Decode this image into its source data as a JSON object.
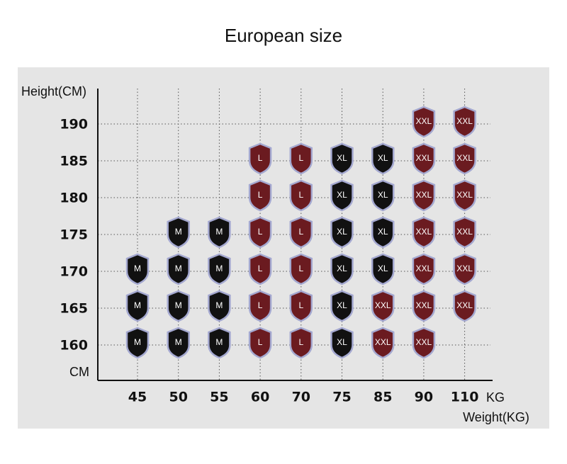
{
  "title": "European size",
  "y_axis_label": "Height(CM)",
  "y_unit": "CM",
  "x_axis_label": "Weight(KG)",
  "x_unit": "KG",
  "heights": [
    190,
    185,
    180,
    175,
    170,
    165,
    160
  ],
  "weights": [
    45,
    50,
    55,
    60,
    70,
    75,
    85,
    90,
    110
  ],
  "sizes": [
    [
      null,
      null,
      null,
      null,
      null,
      null,
      null,
      "XXL",
      "XXL"
    ],
    [
      null,
      null,
      null,
      "L",
      "L",
      "XL",
      "XL",
      "XXL",
      "XXL"
    ],
    [
      null,
      null,
      null,
      "L",
      "L",
      "XL",
      "XL",
      "XXL",
      "XXL"
    ],
    [
      null,
      "M",
      "M",
      "L",
      "L",
      "XL",
      "XL",
      "XXL",
      "XXL"
    ],
    [
      "M",
      "M",
      "M",
      "L",
      "L",
      "XL",
      "XL",
      "XXL",
      "XXL"
    ],
    [
      "M",
      "M",
      "M",
      "L",
      "L",
      "XL",
      "XXL",
      "XXL",
      "XXL"
    ],
    [
      "M",
      "M",
      "M",
      "L",
      "L",
      "XL",
      "XXL",
      "XXL",
      null
    ]
  ],
  "colors": {
    "M": "#111111",
    "L": "#6b1b20",
    "XL": "#111111",
    "XXL": "#6b1b20"
  }
}
